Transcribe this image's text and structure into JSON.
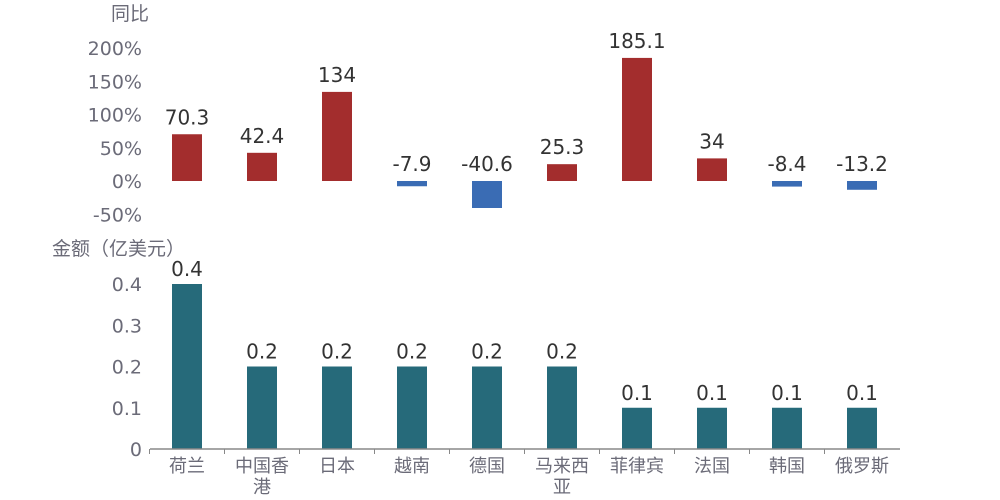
{
  "chart_data": [
    {
      "type": "bar",
      "title": "同比",
      "ylabel": "同比",
      "categories": [
        "荷兰",
        "中国香港",
        "日本",
        "越南",
        "德国",
        "马来西亚",
        "菲律宾",
        "法国",
        "韩国",
        "俄罗斯"
      ],
      "values": [
        70.3,
        42.4,
        134,
        -7.9,
        -40.6,
        25.3,
        185.1,
        34,
        -8.4,
        -13.2
      ],
      "data_labels": [
        "70.3",
        "42.4",
        "134",
        "-7.9",
        "-40.6",
        "25.3",
        "185.1",
        "34",
        "-8.4",
        "-13.2"
      ],
      "unit": "%",
      "ylim": [
        -50,
        200
      ],
      "yticks": [
        200,
        150,
        100,
        50,
        0,
        -50
      ],
      "ytick_labels": [
        "200%",
        "150%",
        "100%",
        "50%",
        "0%",
        "-50%"
      ],
      "grid": false,
      "colors": {
        "positive": "#a32d2d",
        "negative": "#3a6cb4"
      }
    },
    {
      "type": "bar",
      "title": "金额（亿美元）",
      "ylabel": "金额（亿美元）",
      "categories": [
        "荷兰",
        "中国香港",
        "日本",
        "越南",
        "德国",
        "马来西亚",
        "菲律宾",
        "法国",
        "韩国",
        "俄罗斯"
      ],
      "category_labels": [
        [
          "荷兰"
        ],
        [
          "中国香",
          "港"
        ],
        [
          "日本"
        ],
        [
          "越南"
        ],
        [
          "德国"
        ],
        [
          "马来西",
          "亚"
        ],
        [
          "菲律宾"
        ],
        [
          "法国"
        ],
        [
          "韩国"
        ],
        [
          "俄罗斯"
        ]
      ],
      "values": [
        0.4,
        0.2,
        0.2,
        0.2,
        0.2,
        0.2,
        0.1,
        0.1,
        0.1,
        0.1
      ],
      "data_labels": [
        "0.4",
        "0.2",
        "0.2",
        "0.2",
        "0.2",
        "0.2",
        "0.1",
        "0.1",
        "0.1",
        "0.1"
      ],
      "ylim": [
        0,
        0.4
      ],
      "yticks": [
        0.4,
        0.3,
        0.2,
        0.1,
        0
      ],
      "ytick_labels": [
        "0.4",
        "0.3",
        "0.2",
        "0.1",
        "0"
      ],
      "grid": false,
      "colors": {
        "bar": "#266a7a",
        "axis": "#888888"
      }
    }
  ]
}
